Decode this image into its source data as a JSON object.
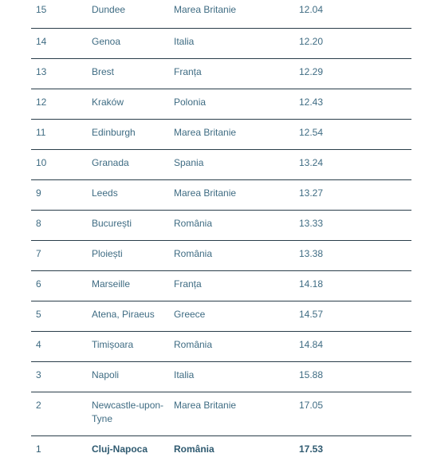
{
  "table": {
    "rows": [
      {
        "rank": "15",
        "city": "Dundee",
        "country": "Marea Britanie",
        "value": "12.04"
      },
      {
        "rank": "14",
        "city": "Genoa",
        "country": "Italia",
        "value": "12.20"
      },
      {
        "rank": "13",
        "city": "Brest",
        "country": "Franța",
        "value": "12.29"
      },
      {
        "rank": "12",
        "city": "Kraków",
        "country": "Polonia",
        "value": "12.43"
      },
      {
        "rank": "11",
        "city": "Edinburgh",
        "country": "Marea Britanie",
        "value": "12.54"
      },
      {
        "rank": "10",
        "city": "Granada",
        "country": "Spania",
        "value": "13.24"
      },
      {
        "rank": "9",
        "city": "Leeds",
        "country": "Marea Britanie",
        "value": "13.27"
      },
      {
        "rank": "8",
        "city": "București",
        "country": "România",
        "value": "13.33"
      },
      {
        "rank": "7",
        "city": "Ploiești",
        "country": "România",
        "value": "13.38"
      },
      {
        "rank": "6",
        "city": "Marseille",
        "country": "Franța",
        "value": "14.18"
      },
      {
        "rank": "5",
        "city": "Atena, Piraeus",
        "country": "Greece",
        "value": "14.57"
      },
      {
        "rank": "4",
        "city": "Timișoara",
        "country": "România",
        "value": "14.84"
      },
      {
        "rank": "3",
        "city": "Napoli",
        "country": "Italia",
        "value": "15.88"
      },
      {
        "rank": "2",
        "city": "Newcastle-upon-Tyne",
        "country": "Marea Britanie",
        "value": "17.05"
      },
      {
        "rank": "1",
        "city": "Cluj-Napoca",
        "country": "România",
        "value": "17.53"
      }
    ]
  }
}
